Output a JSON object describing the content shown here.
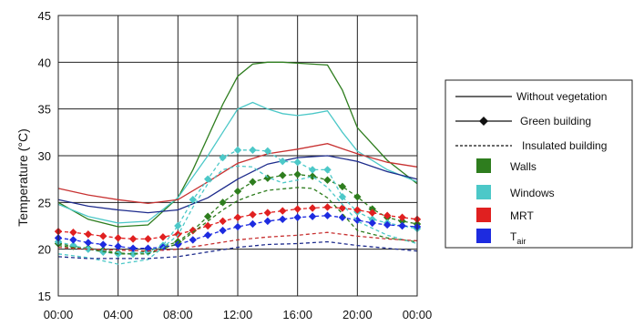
{
  "chart_data": {
    "type": "line",
    "title": "",
    "xlabel": "",
    "ylabel": "Temperature (°C)",
    "x_ticks": [
      "00:00",
      "04:00",
      "08:00",
      "12:00",
      "16:00",
      "20:00",
      "00:00"
    ],
    "xlim": [
      0,
      24
    ],
    "ylim": [
      15,
      45
    ],
    "y_ticks": [
      15,
      20,
      25,
      30,
      35,
      40,
      45
    ],
    "grid": true,
    "legend_position": "right",
    "legend": {
      "line_styles": [
        {
          "label": "Without vegetation",
          "style": "solid"
        },
        {
          "label": "Green building",
          "style": "diamond"
        },
        {
          "label": "Insulated building",
          "style": "dashed"
        }
      ],
      "variables": [
        {
          "label": "Walls",
          "sub": "",
          "color": "#2e7d1e"
        },
        {
          "label": "Windows",
          "sub": "",
          "color": "#4cc8c8"
        },
        {
          "label": "MRT",
          "sub": "",
          "color": "#e02020"
        },
        {
          "label": "T",
          "sub": "air",
          "color": "#1d2be0"
        }
      ]
    },
    "series": [
      {
        "variable": "Walls",
        "scenario": "Without vegetation",
        "color": "#2e7d1e",
        "x": [
          0,
          2,
          4,
          6,
          8,
          9,
          10,
          11,
          12,
          13,
          14,
          15,
          16,
          17,
          18,
          19,
          20,
          22,
          24
        ],
        "y": [
          25,
          23.2,
          22.4,
          22.6,
          25.5,
          28.5,
          32,
          35.5,
          38.5,
          39.8,
          40,
          40,
          39.9,
          39.8,
          39.7,
          37,
          33,
          29.5,
          27
        ]
      },
      {
        "variable": "Windows",
        "scenario": "Without vegetation",
        "color": "#4cc8c8",
        "x": [
          0,
          2,
          4,
          6,
          8,
          10,
          11,
          12,
          13,
          14,
          15,
          16,
          17,
          18,
          19,
          20,
          22,
          24
        ],
        "y": [
          24.8,
          23.5,
          22.8,
          23,
          25.5,
          30,
          32.5,
          35,
          35.7,
          35,
          34.5,
          34.3,
          34.5,
          34.8,
          32.5,
          30.5,
          28.5,
          27.2
        ]
      },
      {
        "variable": "MRT",
        "scenario": "Without vegetation",
        "color": "#c83232",
        "x": [
          0,
          2,
          4,
          6,
          8,
          10,
          12,
          14,
          16,
          18,
          20,
          22,
          24
        ],
        "y": [
          26.5,
          25.8,
          25.3,
          24.9,
          25.3,
          27.2,
          29.2,
          30.2,
          30.7,
          31.3,
          30.2,
          29.3,
          28.8
        ]
      },
      {
        "variable": "T_air",
        "scenario": "Without vegetation",
        "color": "#1d2b8c",
        "x": [
          0,
          2,
          4,
          6,
          8,
          10,
          12,
          14,
          16,
          18,
          20,
          22,
          24
        ],
        "y": [
          25.3,
          24.6,
          24.2,
          23.9,
          24.2,
          25.5,
          27.5,
          29.1,
          29.8,
          30,
          29.4,
          28.3,
          27.5
        ]
      },
      {
        "variable": "Walls",
        "scenario": "Green building",
        "color": "#2e7d1e",
        "x": [
          0,
          1,
          2,
          3,
          4,
          5,
          6,
          7,
          8,
          9,
          10,
          11,
          12,
          13,
          14,
          15,
          16,
          17,
          18,
          19,
          20,
          21,
          22,
          23,
          24
        ],
        "y": [
          20.6,
          20.3,
          20.1,
          19.9,
          19.6,
          19.5,
          19.8,
          20.3,
          20.8,
          22,
          23.5,
          25,
          26.2,
          27.2,
          27.6,
          27.9,
          28,
          27.8,
          27.4,
          26.7,
          25.6,
          24.3,
          23.4,
          23,
          22.7
        ]
      },
      {
        "variable": "Windows",
        "scenario": "Green building",
        "color": "#4cc8c8",
        "x": [
          0,
          1,
          2,
          3,
          4,
          5,
          6,
          7,
          8,
          9,
          10,
          11,
          12,
          13,
          14,
          15,
          16,
          17,
          18,
          19,
          20,
          21,
          22,
          23,
          24
        ],
        "y": [
          20.8,
          20.4,
          20,
          19.7,
          19.5,
          19.5,
          19.7,
          20.4,
          22.5,
          25.3,
          27.5,
          29.8,
          30.6,
          30.6,
          30.5,
          29.4,
          29.3,
          28.5,
          28.5,
          25.6,
          24,
          23.2,
          22.8,
          22.5,
          22.2
        ]
      },
      {
        "variable": "MRT",
        "scenario": "Green building",
        "color": "#e02020",
        "x": [
          0,
          1,
          2,
          3,
          4,
          5,
          6,
          7,
          8,
          9,
          10,
          11,
          12,
          13,
          14,
          15,
          16,
          17,
          18,
          19,
          20,
          21,
          22,
          23,
          24
        ],
        "y": [
          21.9,
          21.8,
          21.6,
          21.4,
          21.2,
          21.1,
          21.1,
          21.3,
          21.6,
          22,
          22.5,
          23,
          23.4,
          23.7,
          23.9,
          24.1,
          24.3,
          24.4,
          24.5,
          24.4,
          24.2,
          23.9,
          23.6,
          23.4,
          23.2
        ]
      },
      {
        "variable": "T_air",
        "scenario": "Green building",
        "color": "#1d2be0",
        "x": [
          0,
          1,
          2,
          3,
          4,
          5,
          6,
          7,
          8,
          9,
          10,
          11,
          12,
          13,
          14,
          15,
          16,
          17,
          18,
          19,
          20,
          21,
          22,
          23,
          24
        ],
        "y": [
          21.2,
          21,
          20.7,
          20.5,
          20.3,
          20.1,
          20.1,
          20.2,
          20.5,
          21,
          21.5,
          22,
          22.4,
          22.7,
          23,
          23.2,
          23.4,
          23.5,
          23.6,
          23.4,
          23.1,
          22.8,
          22.6,
          22.5,
          22.4
        ]
      },
      {
        "variable": "Walls",
        "scenario": "Insulated building",
        "color": "#2e7d1e",
        "x": [
          0,
          2,
          4,
          6,
          8,
          10,
          11,
          12,
          13,
          14,
          16,
          17,
          18,
          19,
          20,
          22,
          24
        ],
        "y": [
          20.4,
          20,
          19.5,
          19.5,
          20.6,
          23,
          24.2,
          25.2,
          25.8,
          26.3,
          26.6,
          26.5,
          25.5,
          23.8,
          22,
          21.2,
          20.8
        ]
      },
      {
        "variable": "Windows",
        "scenario": "Insulated building",
        "color": "#4cc8c8",
        "x": [
          0,
          2,
          4,
          6,
          8,
          9,
          10,
          11,
          12,
          13,
          14,
          15,
          16,
          17,
          18,
          19,
          20,
          22,
          24
        ],
        "y": [
          19.5,
          19.1,
          18.4,
          18.9,
          21.5,
          24.5,
          27,
          28.5,
          28.9,
          28.8,
          27.7,
          27.1,
          27.4,
          27.8,
          26.6,
          24.8,
          23,
          21.5,
          20.6
        ]
      },
      {
        "variable": "MRT",
        "scenario": "Insulated building",
        "color": "#c83232",
        "x": [
          0,
          2,
          4,
          6,
          8,
          10,
          12,
          14,
          16,
          18,
          20,
          22,
          24
        ],
        "y": [
          20.2,
          20,
          19.9,
          19.8,
          20,
          20.5,
          21,
          21.3,
          21.5,
          21.8,
          21.4,
          21.1,
          20.9
        ]
      },
      {
        "variable": "T_air",
        "scenario": "Insulated building",
        "color": "#1d2b8c",
        "x": [
          0,
          2,
          4,
          6,
          8,
          10,
          12,
          14,
          16,
          18,
          20,
          22,
          24
        ],
        "y": [
          19.2,
          19,
          19,
          19,
          19.2,
          19.7,
          20.2,
          20.5,
          20.6,
          20.8,
          20.4,
          20.1,
          19.8
        ]
      }
    ]
  }
}
